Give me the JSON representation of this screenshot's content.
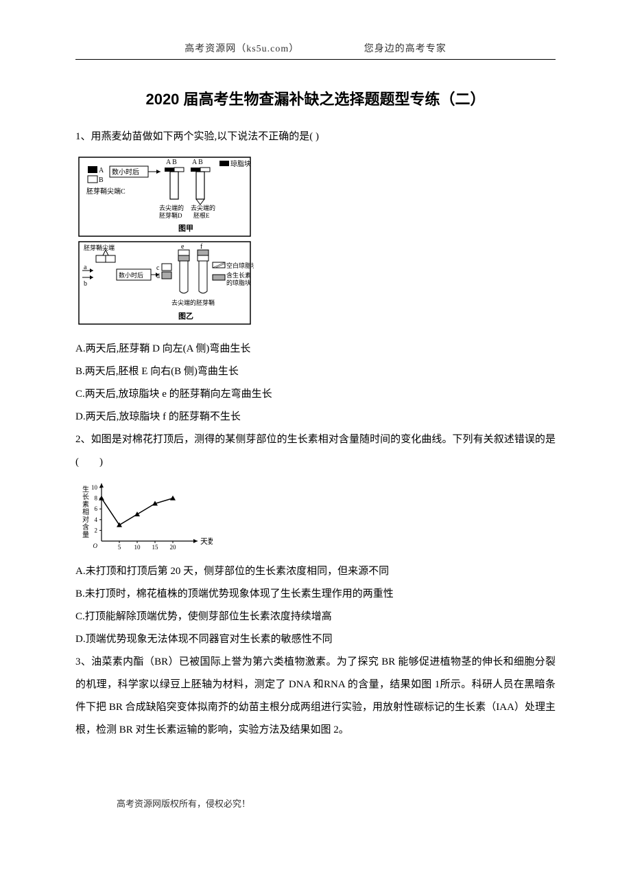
{
  "header": {
    "left": "高考资源网（ks5u.com）",
    "right": "您身边的高考专家"
  },
  "title": "2020 届高考生物查漏补缺之选择题题型专练（二）",
  "q1": {
    "stem": "1、用燕麦幼苗做如下两个实验,以下说法不正确的是(   )",
    "optA": "A.两天后,胚芽鞘 D 向左(A 侧)弯曲生长",
    "optB": "B.两天后,胚根 E 向右(B 侧)弯曲生长",
    "optC": "C.两天后,放琼脂块 e 的胚芽鞘向左弯曲生长",
    "optD": "D.两天后,放琼脂块 f 的胚芽鞘不生长",
    "fig": {
      "labels": {
        "a": "A",
        "b": "B",
        "ab2": "A  B",
        "ab3": "A  B",
        "agar": "琼脂块",
        "hours": "数小时后",
        "tipC": "胚芽鞘尖端C",
        "noTipD": "去尖端的\n胚芽鞘D",
        "noTipE": "去尖端的\n胚根E",
        "figA": "图甲",
        "tip": "胚芽鞘尖端",
        "ab_lower": "a\nb",
        "hours2": "数小时后",
        "cd": "c\nd",
        "ef": "e       f",
        "blank": "空白琼脂块",
        "iaa": "含生长素\n的琼脂块",
        "noTipShoot": "去尖端的胚芽鞘",
        "figB": "图乙"
      },
      "colors": {
        "stroke": "#000000",
        "fill_black": "#000000",
        "fill_white": "#ffffff",
        "fill_gray": "#bbbbbb",
        "fill_hatch": "#888888"
      }
    }
  },
  "q2": {
    "stem": "2、如图是对棉花打顶后，测得的某侧芽部位的生长素相对含量随时间的变化曲线。下列有关叙述错误的是(　　)",
    "optA": "A.未打顶和打顶后第 20 天，侧芽部位的生长素浓度相同，但来源不同",
    "optB": "B.未打顶时，棉花植株的顶端优势现象体现了生长素生理作用的两重性",
    "optC": "C.打顶能解除顶端优势，使侧芽部位生长素浓度持续增高",
    "optD": "D.顶端优势现象无法体现不同器官对生长素的敏感性不同",
    "chart": {
      "type": "line",
      "x_values": [
        0,
        5,
        10,
        15,
        20
      ],
      "y_values": [
        8,
        3,
        5,
        7,
        8
      ],
      "xlim": [
        0,
        25
      ],
      "ylim": [
        0,
        10
      ],
      "xticks": [
        5,
        10,
        15,
        20
      ],
      "yticks": [
        2,
        4,
        6,
        8,
        10
      ],
      "xlabel": "天数",
      "ylabel": "生长素相对含量",
      "marker": "triangle",
      "marker_color": "#000000",
      "line_color": "#000000",
      "line_width": 1.5,
      "axis_color": "#000000",
      "label_fontsize": 11
    }
  },
  "q3": {
    "stem": "3、油菜素内酯（BR）已被国际上誉为第六类植物激素。为了探究 BR  能够促进植物茎的伸长和细胞分裂的机理，科学家以绿豆上胚轴为材料，测定了 DNA  和RNA   的含量，结果如图 1所示。科研人员在黑暗条件下把 BR  合成缺陷突变体拟南芥的幼苗主根分成两组进行实验，用放射性碳标记的生长素（IAA）处理主根，检测  BR  对生长素运输的影响，实验方法及结果如图  2。"
  },
  "footer": "高考资源网版权所有，侵权必究！"
}
